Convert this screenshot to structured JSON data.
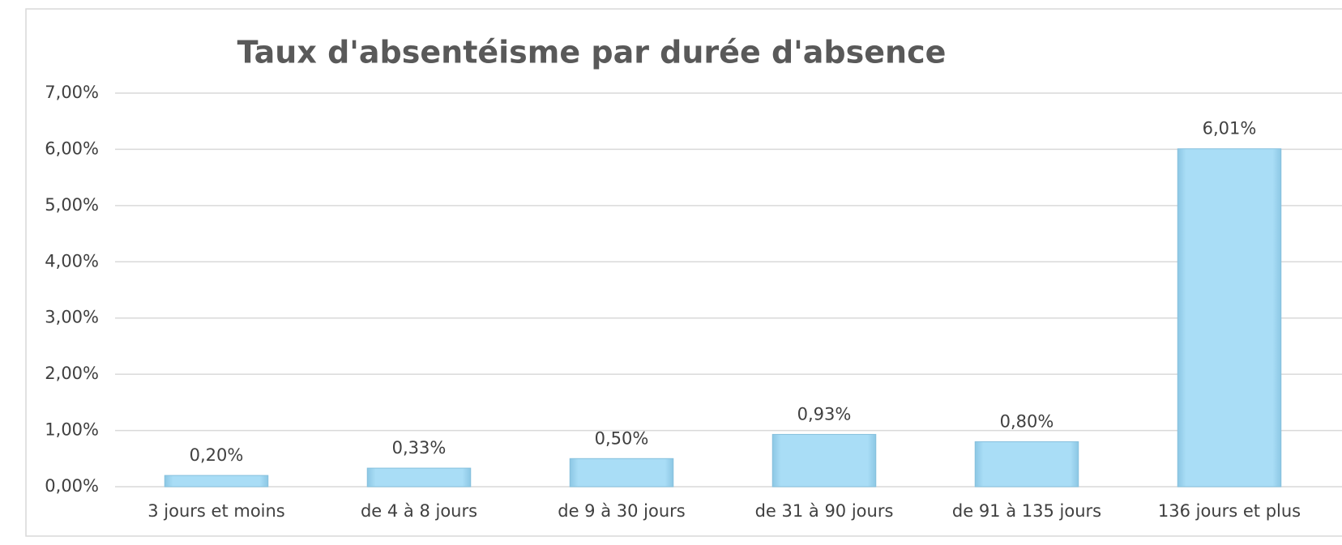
{
  "chart_data": {
    "type": "bar",
    "title": "Taux d'absentéisme par durée d'absence",
    "categories": [
      "3 jours et moins",
      "de 4 à 8 jours",
      "de 9 à 30 jours",
      "de 31 à 90 jours",
      "de 91 à 135 jours",
      "136 jours et plus"
    ],
    "values": [
      0.2,
      0.33,
      0.5,
      0.93,
      0.8,
      6.01
    ],
    "value_labels": [
      "0,20%",
      "0,33%",
      "0,50%",
      "0,93%",
      "0,80%",
      "6,01%"
    ],
    "color": "#a9ddf6",
    "ylim": [
      0,
      7
    ],
    "yticks": [
      {
        "value": 0,
        "label": "0,00%"
      },
      {
        "value": 1,
        "label": "1,00%"
      },
      {
        "value": 2,
        "label": "2,00%"
      },
      {
        "value": 3,
        "label": "3,00%"
      },
      {
        "value": 4,
        "label": "4,00%"
      },
      {
        "value": 5,
        "label": "5,00%"
      },
      {
        "value": 6,
        "label": "6,00%"
      },
      {
        "value": 7,
        "label": "7,00%"
      }
    ],
    "grid": true
  }
}
